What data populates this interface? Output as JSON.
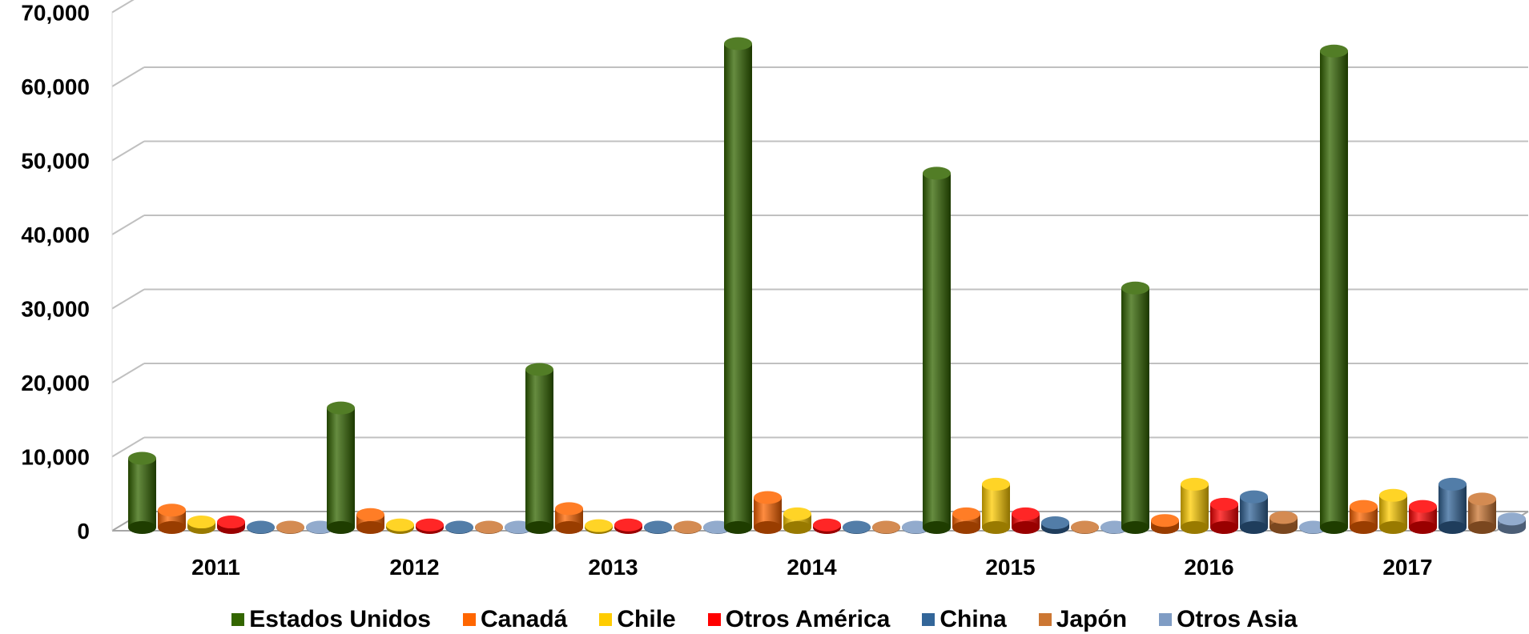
{
  "chart_data": {
    "type": "bar",
    "title": "",
    "xlabel": "",
    "ylabel": "",
    "ylim": [
      0,
      70000
    ],
    "y_ticks": [
      "0",
      "10,000",
      "20,000",
      "30,000",
      "40,000",
      "50,000",
      "60,000",
      "70,000"
    ],
    "categories": [
      "2011",
      "2012",
      "2013",
      "2014",
      "2015",
      "2016",
      "2017"
    ],
    "grid": true,
    "legend_position": "bottom",
    "style": "3d-cylinder",
    "series": [
      {
        "name": "Estados Unidos",
        "color": "#336600",
        "values": [
          10000,
          16800,
          22000,
          66000,
          48500,
          33000,
          65000
        ]
      },
      {
        "name": "Canadá",
        "color": "#FF6600",
        "values": [
          3000,
          2400,
          3200,
          4700,
          2500,
          1600,
          3500
        ]
      },
      {
        "name": "Chile",
        "color": "#FFCC00",
        "values": [
          1400,
          1000,
          900,
          2500,
          6500,
          6500,
          5000
        ]
      },
      {
        "name": "Otros América",
        "color": "#FF0000",
        "values": [
          1400,
          1000,
          1000,
          1000,
          2500,
          3800,
          3500
        ]
      },
      {
        "name": "China",
        "color": "#336699",
        "values": [
          700,
          700,
          700,
          700,
          1300,
          4800,
          6500
        ]
      },
      {
        "name": "Japón",
        "color": "#CC7733",
        "values": [
          700,
          700,
          700,
          700,
          700,
          2000,
          4500
        ]
      },
      {
        "name": "Otros Asia",
        "color": "#7F9CC4",
        "values": [
          700,
          700,
          700,
          700,
          700,
          700,
          1800
        ]
      }
    ]
  }
}
